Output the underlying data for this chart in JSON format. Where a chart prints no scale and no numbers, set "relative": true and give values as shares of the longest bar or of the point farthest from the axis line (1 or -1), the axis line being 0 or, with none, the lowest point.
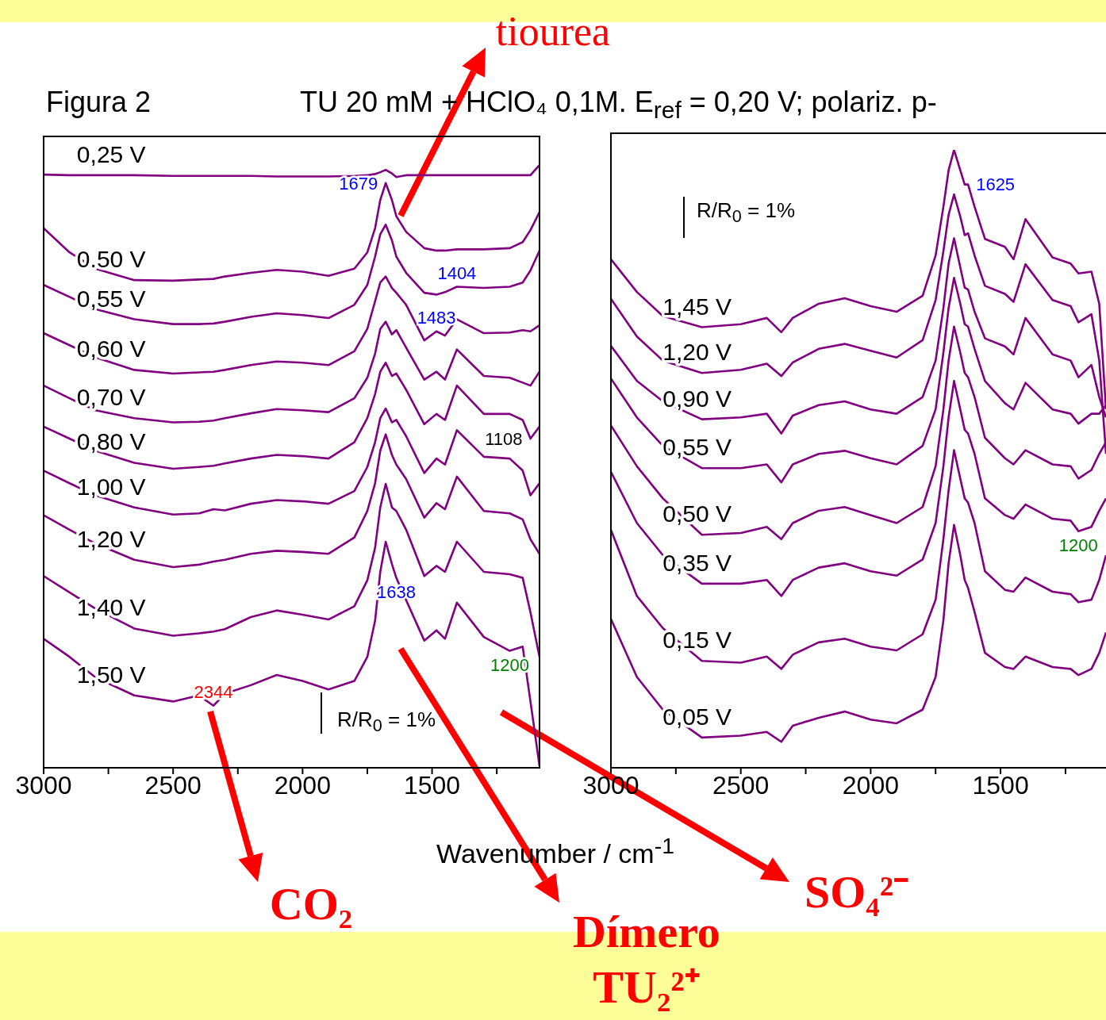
{
  "chart_data": [
    {
      "type": "line",
      "title": "Figura 2",
      "subtitle": "TU 20 mM + HClO₄ 0,1M. E$_{ref}$ = 0,20 V; polariz. p-",
      "xlabel": "Wavenumber / cm$^{-1}$",
      "relative": true,
      "marker": "none",
      "xlim": [
        3000,
        1085
      ],
      "xticks": [
        3000,
        {
          "value": 2750,
          "label": null
        },
        2500,
        {
          "value": 2250,
          "label": null
        },
        2000,
        {
          "value": 1750,
          "label": null
        },
        1500,
        {
          "value": 1250,
          "label": null
        }
      ],
      "x": [
        3000,
        2900,
        2800,
        2650,
        2500,
        2400,
        2344,
        2300,
        2200,
        2100,
        2000,
        1900,
        1800,
        1750,
        1720,
        1700,
        1679,
        1655,
        1638,
        1600,
        1530,
        1483,
        1450,
        1404,
        1300,
        1200,
        1150,
        1120,
        1085
      ],
      "series": [
        {
          "name": "0,25 V",
          "color": "#800080",
          "values": [
            0.984,
            0.983,
            0.983,
            0.983,
            0.982,
            0.982,
            0.982,
            0.982,
            0.982,
            0.981,
            0.981,
            0.981,
            0.982,
            0.983,
            0.985,
            0.988,
            0.992,
            0.986,
            0.98,
            0.983,
            0.983,
            0.983,
            0.983,
            0.983,
            0.983,
            0.983,
            0.983,
            0.983,
            1
          ]
        },
        {
          "name": "0.50 V",
          "color": "#800080",
          "values": [
            0.895,
            0.855,
            0.828,
            0.809,
            0.808,
            0.81,
            0.811,
            0.815,
            0.821,
            0.826,
            0.823,
            0.816,
            0.828,
            0.855,
            0.895,
            0.942,
            0.97,
            0.942,
            0.915,
            0.889,
            0.862,
            0.858,
            0.858,
            0.86,
            0.86,
            0.862,
            0.872,
            0.892,
            0.922
          ]
        },
        {
          "name": "0,55 V",
          "color": "#800080",
          "values": [
            0.801,
            0.781,
            0.761,
            0.744,
            0.736,
            0.736,
            0.737,
            0.74,
            0.748,
            0.754,
            0.751,
            0.746,
            0.768,
            0.801,
            0.848,
            0.885,
            0.901,
            0.875,
            0.848,
            0.821,
            0.788,
            0.785,
            0.789,
            0.798,
            0.796,
            0.798,
            0.805,
            0.825,
            0.858
          ]
        },
        {
          "name": "0,60 V",
          "color": "#800080",
          "values": [
            0.721,
            0.701,
            0.681,
            0.66,
            0.654,
            0.656,
            0.657,
            0.66,
            0.668,
            0.674,
            0.672,
            0.668,
            0.691,
            0.728,
            0.774,
            0.805,
            0.815,
            0.796,
            0.788,
            0.768,
            0.709,
            0.724,
            0.717,
            0.744,
            0.721,
            0.722,
            0.726,
            0.724,
            0.734
          ]
        },
        {
          "name": "0,70 V",
          "color": "#800080",
          "values": [
            0.634,
            0.613,
            0.593,
            0.58,
            0.573,
            0.574,
            0.576,
            0.58,
            0.588,
            0.595,
            0.593,
            0.59,
            0.613,
            0.647,
            0.687,
            0.728,
            0.74,
            0.719,
            0.726,
            0.697,
            0.644,
            0.657,
            0.644,
            0.694,
            0.65,
            0.647,
            0.639,
            0.634,
            0.657
          ]
        },
        {
          "name": "0,80 V",
          "color": "#800080",
          "values": [
            0.566,
            0.546,
            0.526,
            0.506,
            0.496,
            0.499,
            0.501,
            0.505,
            0.513,
            0.519,
            0.517,
            0.513,
            0.54,
            0.58,
            0.62,
            0.657,
            0.672,
            0.65,
            0.654,
            0.627,
            0.57,
            0.587,
            0.577,
            0.634,
            0.587,
            0.587,
            0.577,
            0.546,
            0.566
          ]
        },
        {
          "name": "1,00 V",
          "color": "#800080",
          "values": [
            0.493,
            0.472,
            0.452,
            0.432,
            0.42,
            0.422,
            0.429,
            0.427,
            0.438,
            0.444,
            0.442,
            0.438,
            0.459,
            0.499,
            0.54,
            0.58,
            0.596,
            0.573,
            0.577,
            0.55,
            0.489,
            0.513,
            0.503,
            0.56,
            0.516,
            0.513,
            0.493,
            0.452,
            0.472
          ]
        },
        {
          "name": "1,20 V",
          "color": "#800080",
          "values": [
            0.419,
            0.395,
            0.372,
            0.345,
            0.333,
            0.337,
            0.342,
            0.345,
            0.355,
            0.36,
            0.358,
            0.355,
            0.382,
            0.426,
            0.472,
            0.526,
            0.553,
            0.519,
            0.503,
            0.479,
            0.415,
            0.439,
            0.429,
            0.483,
            0.426,
            0.422,
            0.412,
            0.379,
            0.355
          ]
        },
        {
          "name": "1,40 V",
          "color": "#800080",
          "values": [
            0.318,
            0.291,
            0.264,
            0.231,
            0.219,
            0.223,
            0.226,
            0.23,
            0.25,
            0.261,
            0.254,
            0.246,
            0.268,
            0.311,
            0.365,
            0.432,
            0.471,
            0.432,
            0.426,
            0.395,
            0.318,
            0.335,
            0.325,
            0.375,
            0.325,
            0.321,
            0.315,
            0.258,
            0.184
          ]
        },
        {
          "name": "1,50 V",
          "color": "#800080",
          "values": [
            0.214,
            0.184,
            0.15,
            0.12,
            0.11,
            0.12,
            0.103,
            0.123,
            0.137,
            0.154,
            0.144,
            0.13,
            0.144,
            0.184,
            0.244,
            0.325,
            0.375,
            0.338,
            0.315,
            0.278,
            0.211,
            0.228,
            0.214,
            0.274,
            0.217,
            0.194,
            0.201,
            0.11,
            0.003
          ]
        }
      ],
      "annotations": [
        {
          "text": "1679",
          "x": 1679,
          "y": 0.97
        },
        {
          "text": "1404",
          "x": 1404,
          "y": 0.798
        },
        {
          "text": "1483",
          "x": 1483,
          "y": 0.724
        },
        {
          "text": "1108",
          "x": 1120,
          "y": 0.546
        },
        {
          "text": "2344",
          "x": 2344,
          "y": 0.103
        },
        {
          "text": "1638",
          "x": 1638,
          "y": 0.315
        },
        {
          "text": "1200",
          "x": 1200,
          "y": 0.194
        },
        "R/R$_{0}$ = 1%",
        "tiourea",
        "CO₂",
        "Dímero",
        "TU₂²⁺",
        "SO₄²⁻"
      ]
    },
    {
      "type": "line",
      "relative": true,
      "marker": "none",
      "xlim": [
        3000,
        1094
      ],
      "xticks": [
        3000,
        {
          "value": 2750,
          "label": null
        },
        2500,
        {
          "value": 2250,
          "label": null
        },
        2000,
        {
          "value": 1750,
          "label": null
        },
        1500,
        {
          "value": 1250,
          "label": null
        }
      ],
      "x": [
        3000,
        2900,
        2800,
        2650,
        2500,
        2400,
        2344,
        2300,
        2200,
        2100,
        2000,
        1900,
        1800,
        1750,
        1720,
        1700,
        1679,
        1655,
        1638,
        1625,
        1600,
        1560,
        1483,
        1450,
        1404,
        1300,
        1230,
        1200,
        1150,
        1120,
        1094
      ],
      "series": [
        {
          "name": "1,45 V",
          "color": "#800080",
          "values": [
            0.823,
            0.77,
            0.731,
            0.713,
            0.718,
            0.728,
            0.705,
            0.728,
            0.751,
            0.76,
            0.747,
            0.738,
            0.764,
            0.829,
            0.908,
            0.967,
            1,
            0.967,
            0.944,
            0.944,
            0.908,
            0.856,
            0.843,
            0.823,
            0.888,
            0.826,
            0.816,
            0.8,
            0.803,
            0.751,
            0.58
          ]
        },
        {
          "name": "1,20 V",
          "color": "#800080",
          "values": [
            0.759,
            0.698,
            0.659,
            0.639,
            0.644,
            0.654,
            0.634,
            0.656,
            0.678,
            0.686,
            0.675,
            0.664,
            0.692,
            0.757,
            0.836,
            0.895,
            0.928,
            0.892,
            0.862,
            0.865,
            0.829,
            0.78,
            0.767,
            0.754,
            0.815,
            0.757,
            0.747,
            0.721,
            0.734,
            0.659,
            0.508
          ]
        },
        {
          "name": "0,90 V",
          "color": "#800080",
          "values": [
            0.683,
            0.626,
            0.593,
            0.564,
            0.567,
            0.573,
            0.541,
            0.57,
            0.587,
            0.593,
            0.58,
            0.573,
            0.6,
            0.659,
            0.744,
            0.816,
            0.857,
            0.81,
            0.777,
            0.774,
            0.738,
            0.695,
            0.682,
            0.669,
            0.728,
            0.669,
            0.659,
            0.632,
            0.652,
            0.6,
            0.567
          ]
        },
        {
          "name": "0,55 V",
          "color": "#800080",
          "values": [
            0.63,
            0.567,
            0.521,
            0.485,
            0.485,
            0.491,
            0.462,
            0.491,
            0.508,
            0.513,
            0.501,
            0.491,
            0.521,
            0.58,
            0.672,
            0.744,
            0.793,
            0.751,
            0.718,
            0.714,
            0.678,
            0.626,
            0.59,
            0.58,
            0.623,
            0.58,
            0.573,
            0.557,
            0.573,
            0.573,
            0.587
          ]
        },
        {
          "name": "0,50 V",
          "color": "#800080",
          "values": [
            0.554,
            0.488,
            0.436,
            0.377,
            0.38,
            0.39,
            0.37,
            0.396,
            0.416,
            0.422,
            0.409,
            0.396,
            0.422,
            0.488,
            0.58,
            0.659,
            0.714,
            0.672,
            0.639,
            0.632,
            0.6,
            0.534,
            0.501,
            0.491,
            0.514,
            0.491,
            0.488,
            0.468,
            0.482,
            0.508,
            0.527
          ]
        },
        {
          "name": "0,35 V",
          "color": "#800080",
          "values": [
            0.479,
            0.396,
            0.344,
            0.298,
            0.298,
            0.304,
            0.278,
            0.304,
            0.324,
            0.331,
            0.318,
            0.311,
            0.337,
            0.396,
            0.488,
            0.567,
            0.626,
            0.58,
            0.547,
            0.541,
            0.508,
            0.436,
            0.409,
            0.403,
            0.426,
            0.403,
            0.4,
            0.383,
            0.39,
            0.416,
            0.436
          ]
        },
        {
          "name": "0,15 V",
          "color": "#800080",
          "values": [
            0.385,
            0.278,
            0.226,
            0.173,
            0.17,
            0.18,
            0.16,
            0.183,
            0.203,
            0.209,
            0.196,
            0.19,
            0.216,
            0.272,
            0.37,
            0.449,
            0.514,
            0.468,
            0.436,
            0.429,
            0.396,
            0.318,
            0.288,
            0.285,
            0.308,
            0.285,
            0.281,
            0.268,
            0.272,
            0.304,
            0.344
          ]
        },
        {
          "name": "0,05 V",
          "color": "#800080",
          "values": [
            0.241,
            0.147,
            0.094,
            0.049,
            0.052,
            0.058,
            0.042,
            0.068,
            0.081,
            0.091,
            0.078,
            0.072,
            0.094,
            0.147,
            0.239,
            0.331,
            0.393,
            0.344,
            0.304,
            0.291,
            0.252,
            0.186,
            0.163,
            0.16,
            0.18,
            0.163,
            0.16,
            0.15,
            0.16,
            0.186,
            0.219
          ]
        }
      ],
      "annotations": [
        {
          "text": "1625",
          "x": 1625,
          "y": 0.944
        },
        {
          "text": "1200",
          "x": 1200,
          "y": 0.383
        },
        "R/R$_{0}$ = 1%"
      ]
    }
  ]
}
